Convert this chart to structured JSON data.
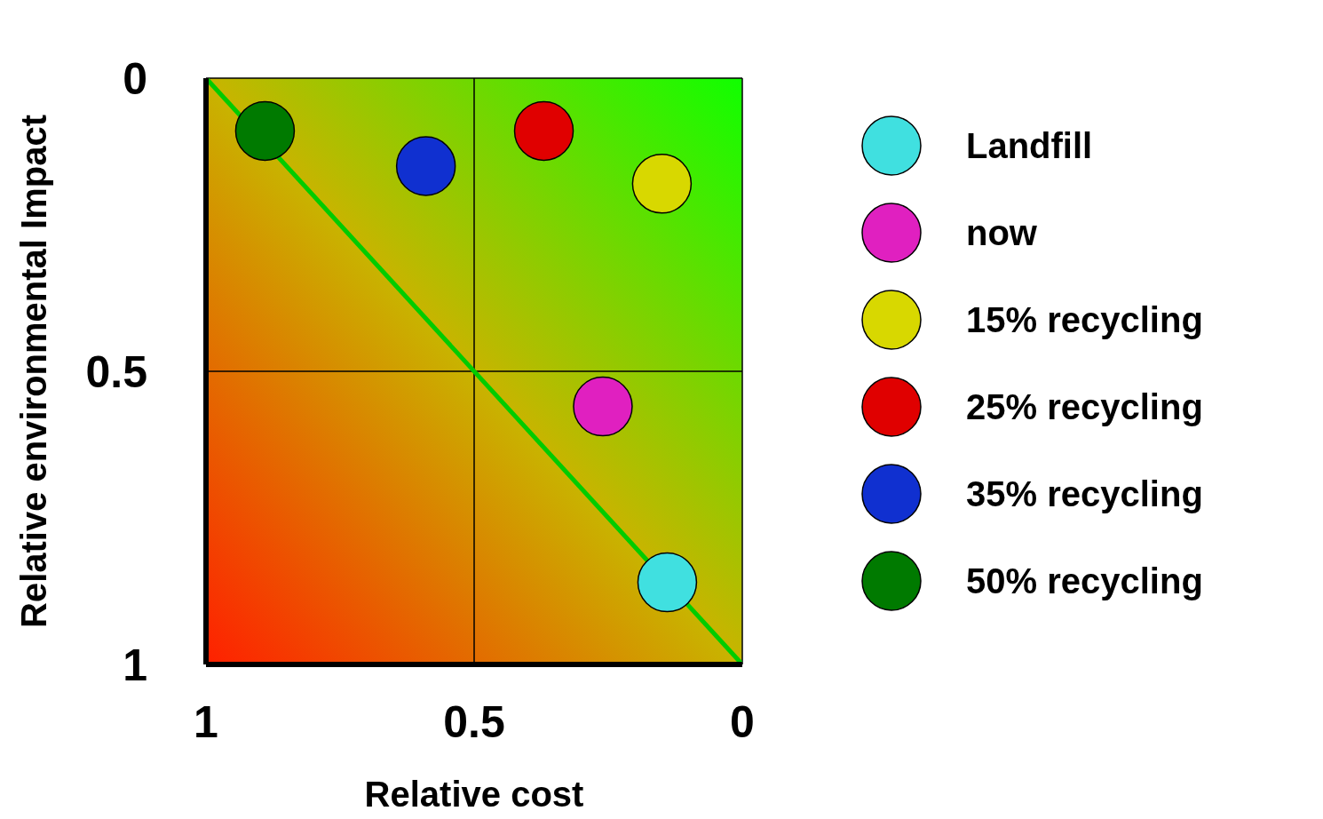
{
  "chart_data": {
    "type": "scatter",
    "xlabel": "Relative cost",
    "ylabel": "Relative environmental Impact",
    "xlim": [
      1,
      0
    ],
    "ylim": [
      1,
      0
    ],
    "xticks": [
      1,
      0.5,
      0
    ],
    "yticks": [
      1,
      0.5,
      0
    ],
    "grid": true,
    "legend": "right",
    "marker": "circle",
    "series": [
      {
        "name": "Landfill",
        "color": "#40e0e0",
        "x": [
          0.14
        ],
        "values": [
          0.86
        ]
      },
      {
        "name": "now",
        "color": "#e020c0",
        "x": [
          0.26
        ],
        "values": [
          0.56
        ]
      },
      {
        "name": "15% recycling",
        "color": "#d8d800",
        "x": [
          0.15
        ],
        "values": [
          0.18
        ]
      },
      {
        "name": "25% recycling",
        "color": "#e00000",
        "x": [
          0.37
        ],
        "values": [
          0.09
        ]
      },
      {
        "name": "35% recycling",
        "color": "#1030d0",
        "x": [
          0.59
        ],
        "values": [
          0.15
        ]
      },
      {
        "name": "50% recycling",
        "color": "#007a00",
        "x": [
          0.89
        ],
        "values": [
          0.09
        ]
      },
      {
        "type": "line",
        "color": "#00cc00",
        "marker": "none",
        "x": [
          1,
          0
        ],
        "values": [
          0,
          1
        ]
      }
    ]
  }
}
